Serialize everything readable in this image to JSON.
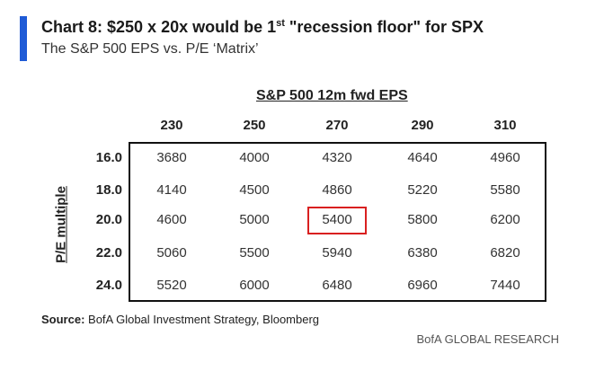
{
  "header": {
    "title_main": "Chart 8: $250 x 20x would be 1",
    "title_sup": "st",
    "title_tail": " \"recession floor\" for SPX",
    "subtitle": "The S&P 500 EPS vs. P/E ‘Matrix’"
  },
  "chart_data": {
    "type": "table",
    "column_header": "S&P 500 12m fwd EPS",
    "row_header": "P/E multiple",
    "columns": [
      "230",
      "250",
      "270",
      "290",
      "310"
    ],
    "rows": [
      "16.0",
      "18.0",
      "20.0",
      "22.0",
      "24.0"
    ],
    "values": [
      [
        "3680",
        "4000",
        "4320",
        "4640",
        "4960"
      ],
      [
        "4140",
        "4500",
        "4860",
        "5220",
        "5580"
      ],
      [
        "4600",
        "5000",
        "5400",
        "5800",
        "6200"
      ],
      [
        "5060",
        "5500",
        "5940",
        "6380",
        "6820"
      ],
      [
        "5520",
        "6000",
        "6480",
        "6960",
        "7440"
      ]
    ],
    "highlight": {
      "row": "20.0",
      "column": "270",
      "value": "5400",
      "color": "#d92020"
    }
  },
  "footer": {
    "source_label": "Source:",
    "source_text": " BofA Global Investment Strategy, Bloomberg",
    "brand": "BofA GLOBAL RESEARCH"
  },
  "colors": {
    "accent": "#1f5bd6",
    "highlight": "#d92020"
  }
}
